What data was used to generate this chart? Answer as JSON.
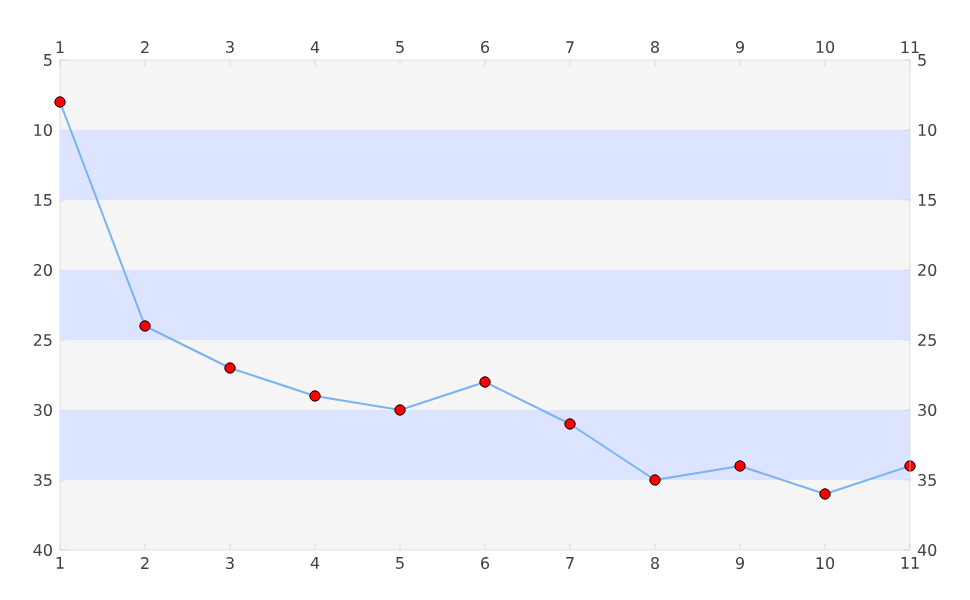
{
  "chart_data": {
    "type": "line",
    "x": [
      1,
      2,
      3,
      4,
      5,
      6,
      7,
      8,
      9,
      10,
      11
    ],
    "series": [
      {
        "color": "#7ab3ef",
        "values": [
          8,
          24,
          27,
          29,
          30,
          28,
          31,
          35,
          34,
          36,
          34
        ]
      }
    ],
    "xlim": [
      1,
      11
    ],
    "xticks": [
      1,
      2,
      3,
      4,
      5,
      6,
      7,
      8,
      9,
      10,
      11
    ],
    "x2lim": [
      1,
      11
    ],
    "x2ticks": [
      1,
      2,
      3,
      4,
      5,
      6,
      7,
      8,
      9,
      10,
      11
    ],
    "ylim": [
      40,
      5
    ],
    "yticks": [
      5,
      10,
      15,
      20,
      25,
      30,
      35,
      40
    ],
    "y2lim": [
      40,
      5
    ],
    "y2ticks": [
      5,
      10,
      15,
      20,
      25,
      30,
      35,
      40
    ],
    "bands": [
      {
        "axis": "y",
        "from": 10,
        "to": 15,
        "color": "#dde4ff"
      },
      {
        "axis": "y",
        "from": 20,
        "to": 25,
        "color": "#dde4ff"
      },
      {
        "axis": "y",
        "from": 30,
        "to": 35,
        "color": "#dde4ff"
      }
    ],
    "marker": "circle"
  }
}
